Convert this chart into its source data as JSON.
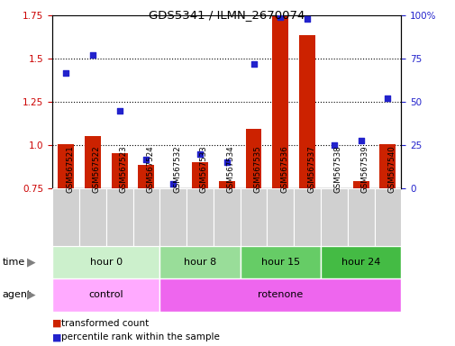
{
  "title": "GDS5341 / ILMN_2670074",
  "samples": [
    "GSM567521",
    "GSM567522",
    "GSM567523",
    "GSM567524",
    "GSM567532",
    "GSM567533",
    "GSM567534",
    "GSM567535",
    "GSM567536",
    "GSM567537",
    "GSM567538",
    "GSM567539",
    "GSM567540"
  ],
  "red_values": [
    1.005,
    1.055,
    0.955,
    0.885,
    0.745,
    0.905,
    0.795,
    1.095,
    1.745,
    1.635,
    0.745,
    0.795,
    1.005
  ],
  "blue_values": [
    67,
    77,
    45,
    17,
    3,
    20,
    15,
    72,
    99,
    98,
    25,
    28,
    52
  ],
  "ylim_left": [
    0.75,
    1.75
  ],
  "ylim_right": [
    0,
    100
  ],
  "yticks_left": [
    0.75,
    1.0,
    1.25,
    1.5,
    1.75
  ],
  "yticks_right": [
    0,
    25,
    50,
    75,
    100
  ],
  "time_groups": [
    {
      "label": "hour 0",
      "start": 0,
      "end": 4,
      "color": "#ccf0cc"
    },
    {
      "label": "hour 8",
      "start": 4,
      "end": 7,
      "color": "#99dd99"
    },
    {
      "label": "hour 15",
      "start": 7,
      "end": 10,
      "color": "#66cc66"
    },
    {
      "label": "hour 24",
      "start": 10,
      "end": 13,
      "color": "#44bb44"
    }
  ],
  "agent_groups": [
    {
      "label": "control",
      "start": 0,
      "end": 4,
      "color": "#ffaaff"
    },
    {
      "label": "rotenone",
      "start": 4,
      "end": 13,
      "color": "#ee66ee"
    }
  ],
  "legend_red": "transformed count",
  "legend_blue": "percentile rank within the sample",
  "bar_color": "#cc2200",
  "dot_color": "#2222cc",
  "bar_bottom": 0.75
}
